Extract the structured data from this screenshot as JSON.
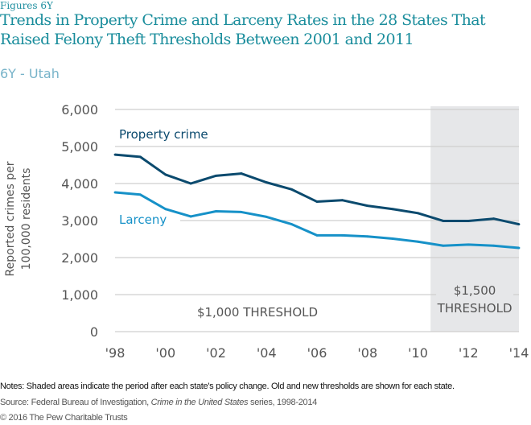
{
  "figure_label": "Figures 6Y",
  "title": "Trends in Property Crime and Larceny Rates in the 28 States That Raised Felony Theft Thresholds Between 2001 and 2011",
  "subtitle": "6Y - Utah",
  "notes": "Notes: Shaded areas indicate the period after each state's policy change. Old and new thresholds are shown for each state.",
  "source": {
    "prefix": "Source: Federal Bureau of Investigation, ",
    "italic": "Crime in the United States",
    "suffix": " series, 1998-2014"
  },
  "copyright": "© 2016 The Pew Charitable Trusts",
  "colors": {
    "property_crime": "#0b4a6e",
    "larceny": "#1691c8",
    "shade": "#e6e7e9",
    "grid": "#cfcfcf",
    "tick_text": "#555555"
  },
  "chart_data": {
    "type": "line",
    "title": "Trends in Property Crime and Larceny Rates in the 28 States That Raised Felony Theft Thresholds Between 2001 and 2011",
    "subtitle": "6Y - Utah",
    "xlabel": "",
    "ylabel": "Reported crimes per 100,000 residents",
    "x": [
      1998,
      1999,
      2000,
      2001,
      2002,
      2003,
      2004,
      2005,
      2006,
      2007,
      2008,
      2009,
      2010,
      2011,
      2012,
      2013,
      2014
    ],
    "xlim": [
      1998,
      2014
    ],
    "ylim": [
      0,
      6000
    ],
    "grid": true,
    "x_ticks": [
      1998,
      2000,
      2002,
      2004,
      2006,
      2008,
      2010,
      2012,
      2014
    ],
    "x_tick_labels": [
      "'98",
      "'00",
      "'02",
      "'04",
      "'06",
      "'08",
      "'10",
      "'12",
      "'14"
    ],
    "y_ticks": [
      0,
      1000,
      2000,
      3000,
      4000,
      5000,
      6000
    ],
    "y_tick_labels": [
      "0",
      "1,000",
      "2,000",
      "3,000",
      "4,000",
      "5,000",
      "6,000"
    ],
    "series": [
      {
        "name": "Property crime",
        "values": [
          4780,
          4720,
          4240,
          4000,
          4210,
          4270,
          4030,
          3840,
          3510,
          3550,
          3400,
          3310,
          3200,
          2990,
          2990,
          3050,
          2900
        ]
      },
      {
        "name": "Larceny",
        "values": [
          3760,
          3700,
          3310,
          3110,
          3250,
          3230,
          3100,
          2900,
          2600,
          2600,
          2570,
          2510,
          2430,
          2320,
          2350,
          2320,
          2260
        ]
      }
    ],
    "shaded_region": {
      "x_start": 2010.5,
      "x_end": 2014
    },
    "annotations": [
      {
        "text": "$1,000 THRESHOLD",
        "region": "before"
      },
      {
        "text_line1": "$1,500",
        "text_line2": "THRESHOLD",
        "region": "shaded"
      }
    ],
    "legend": "inline-labels"
  }
}
